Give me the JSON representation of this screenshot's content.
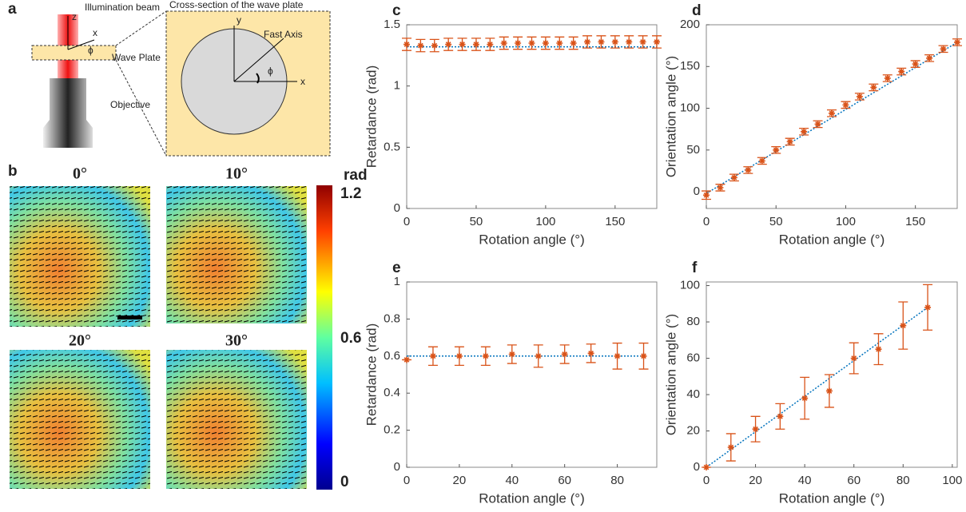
{
  "panel_a": {
    "letter": "a",
    "beam_label": "Illumination beam",
    "z_label": "z",
    "x_label": "x",
    "phi_label": "ϕ",
    "plate_label": "Wave Plate",
    "objective_label": "Objective",
    "cross_section_title": "Cross-section of the wave plate",
    "cs_y_label": "y",
    "cs_x_label": "x",
    "fast_axis_label": "Fast Axis",
    "cs_phi_label": "ϕ"
  },
  "panel_b": {
    "letter": "b",
    "titles": [
      "0°",
      "10°",
      "20°",
      "30°"
    ],
    "colorbar_label": "rad",
    "colorbar_ticks": [
      1.2,
      0.6,
      0
    ]
  },
  "chart_data": [
    {
      "type": "errorbar",
      "panel": "c",
      "xlabel": "Rotation angle (°)",
      "ylabel": "Retardance (rad)",
      "xlim": [
        0,
        180
      ],
      "ylim": [
        0,
        1.5
      ],
      "xticks": [
        0,
        50,
        100,
        150
      ],
      "yticks": [
        0,
        0.5,
        1,
        1.5
      ],
      "x": [
        0,
        10,
        20,
        30,
        40,
        50,
        60,
        70,
        80,
        90,
        100,
        110,
        120,
        130,
        140,
        150,
        160,
        170,
        180
      ],
      "values": [
        1.34,
        1.33,
        1.33,
        1.34,
        1.34,
        1.34,
        1.34,
        1.35,
        1.35,
        1.35,
        1.35,
        1.35,
        1.35,
        1.36,
        1.36,
        1.36,
        1.36,
        1.36,
        1.36
      ],
      "errors": [
        0.05,
        0.05,
        0.05,
        0.05,
        0.05,
        0.05,
        0.05,
        0.05,
        0.05,
        0.05,
        0.05,
        0.05,
        0.05,
        0.05,
        0.05,
        0.05,
        0.05,
        0.05,
        0.05
      ],
      "color": "#d95319",
      "fit": {
        "x": [
          0,
          180
        ],
        "values": [
          1.32,
          1.32
        ],
        "color": "#0072bd"
      }
    },
    {
      "type": "errorbar",
      "panel": "d",
      "xlabel": "Rotation angle (°)",
      "ylabel": "Orientation angle (°)",
      "xlim": [
        0,
        180
      ],
      "ylim": [
        -20,
        200
      ],
      "xticks": [
        0,
        50,
        100,
        150
      ],
      "yticks": [
        0,
        50,
        100,
        150,
        200
      ],
      "x": [
        0,
        10,
        20,
        30,
        40,
        50,
        60,
        70,
        80,
        90,
        100,
        110,
        120,
        130,
        140,
        150,
        160,
        170,
        180
      ],
      "values": [
        -4,
        5,
        17,
        26,
        37,
        50,
        60,
        72,
        81,
        94,
        104,
        114,
        125,
        136,
        144,
        153,
        160,
        171,
        179
      ],
      "errors": [
        5,
        4,
        4,
        4,
        4,
        4,
        4,
        4,
        4,
        4,
        4,
        4,
        4,
        4,
        4,
        4,
        4,
        4,
        4
      ],
      "color": "#d95319",
      "fit": {
        "x": [
          0,
          180
        ],
        "values": [
          -2,
          179
        ],
        "color": "#0072bd"
      }
    },
    {
      "type": "errorbar",
      "panel": "e",
      "xlabel": "Rotation angle (°)",
      "ylabel": "Retardance (rad)",
      "xlim": [
        0,
        95
      ],
      "ylim": [
        0,
        1
      ],
      "xticks": [
        0,
        20,
        40,
        60,
        80
      ],
      "yticks": [
        0,
        0.2,
        0.4,
        0.6,
        0.8,
        1
      ],
      "x": [
        0,
        10,
        20,
        30,
        40,
        50,
        60,
        70,
        80,
        90
      ],
      "values": [
        0.58,
        0.6,
        0.6,
        0.6,
        0.61,
        0.6,
        0.61,
        0.615,
        0.6,
        0.6
      ],
      "errors": [
        0,
        0.05,
        0.05,
        0.05,
        0.05,
        0.06,
        0.05,
        0.05,
        0.07,
        0.07
      ],
      "color": "#d95319",
      "fit": {
        "x": [
          0,
          90
        ],
        "values": [
          0.6,
          0.6
        ],
        "color": "#0072bd"
      }
    },
    {
      "type": "errorbar",
      "panel": "f",
      "xlabel": "Rotation angle (°)",
      "ylabel": "Orientation angle (°)",
      "xlim": [
        0,
        102
      ],
      "ylim": [
        0,
        102
      ],
      "xticks": [
        0,
        20,
        40,
        60,
        80,
        100
      ],
      "yticks": [
        0,
        20,
        40,
        60,
        80,
        100
      ],
      "x": [
        0,
        10,
        20,
        30,
        40,
        50,
        60,
        70,
        80,
        90
      ],
      "values": [
        0,
        11,
        21,
        28,
        38,
        42,
        60,
        65,
        78,
        88
      ],
      "errors": [
        0,
        7.5,
        7,
        7,
        11.5,
        9,
        8.5,
        8.5,
        13,
        12.5
      ],
      "color": "#d95319",
      "fit": {
        "x": [
          0,
          90
        ],
        "values": [
          0,
          88
        ],
        "color": "#0072bd"
      }
    }
  ]
}
